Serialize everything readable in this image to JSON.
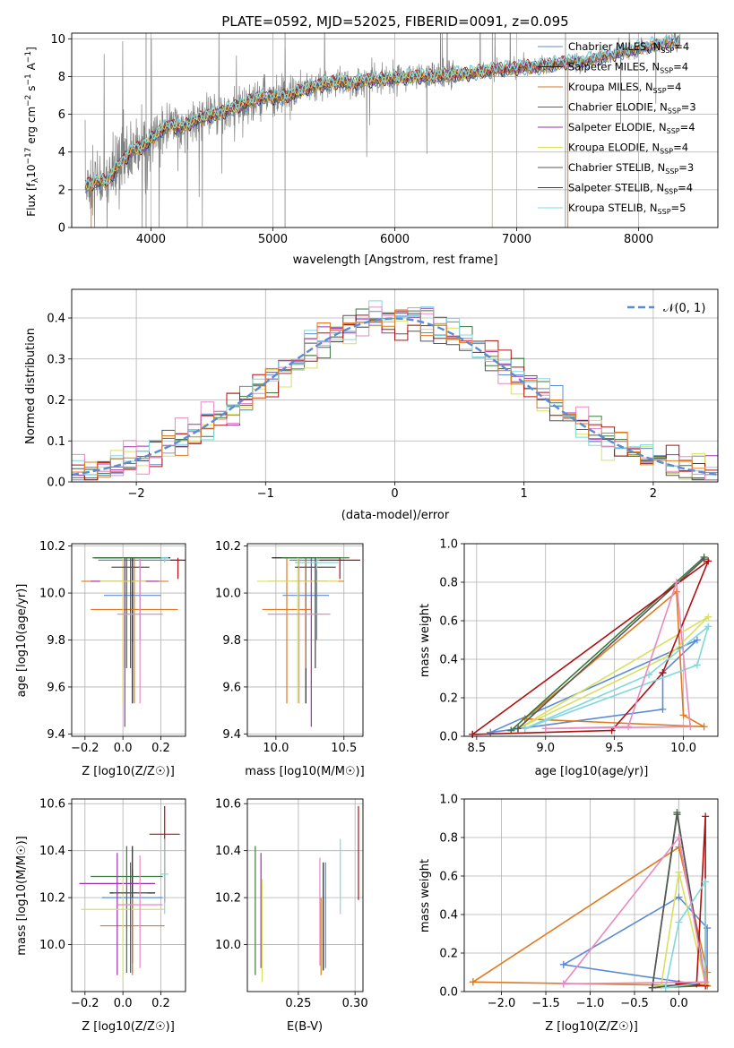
{
  "title": "PLATE=0592, MJD=52025, FIBERID=0091, z=0.095",
  "colors": {
    "chabrier_miles": "#5b8bd6",
    "salpeter_miles": "#222222",
    "kroupa_miles": "#e07a1f",
    "chabrier_elodie": "#3a7a3a",
    "salpeter_elodie": "#9b30b0",
    "kroupa_elodie": "#d8e060",
    "chabrier_stelib": "#555555",
    "salpeter_stelib": "#b01010",
    "kroupa_stelib": "#7fd8dc",
    "pink": "#e88abf",
    "gauss": "#5b8bd6",
    "grid": "#b0b0b0",
    "spectrum_gray": "#808080"
  },
  "legend_spectrum": [
    {
      "main": "Chabrier MILES, N",
      "sub": "SSP",
      "post": "=4",
      "color": "#5b8bd6"
    },
    {
      "main": "Salpeter MILES, N",
      "sub": "SSP",
      "post": "=4",
      "color": "#222222"
    },
    {
      "main": "Kroupa MILES, N",
      "sub": "SSP",
      "post": "=4",
      "color": "#e07a1f"
    },
    {
      "main": "Chabrier ELODIE, N",
      "sub": "SSP",
      "post": "=3",
      "color": "#3a7a3a"
    },
    {
      "main": "Salpeter ELODIE, N",
      "sub": "SSP",
      "post": "=4",
      "color": "#9b30b0"
    },
    {
      "main": "Kroupa ELODIE, N",
      "sub": "SSP",
      "post": "=4",
      "color": "#d8e060"
    },
    {
      "main": "Chabrier STELIB, N",
      "sub": "SSP",
      "post": "=3",
      "color": "#555555"
    },
    {
      "main": "Salpeter STELIB, N",
      "sub": "SSP",
      "post": "=4",
      "color": "#b01010"
    },
    {
      "main": "Kroupa STELIB, N",
      "sub": "SSP",
      "post": "=5",
      "color": "#7fd8dc"
    }
  ],
  "labels": {
    "spec_x": "wavelength [Angstrom, rest frame]",
    "spec_y_pre": "Flux [f",
    "spec_y_lambda": "λ",
    "spec_y_mid": "10",
    "spec_y_exp": "−17",
    "spec_y_post": " erg cm",
    "spec_y_exp2": "−2",
    "spec_y_s": " s",
    "spec_y_exp3": "−1",
    "spec_y_A": " A",
    "spec_y_exp4": "−1",
    "spec_y_end": "]",
    "hist_x": "(data-model)/error",
    "hist_y": "Normed distribution",
    "hist_legend": "𝒩(0, 1)",
    "age_y": "age  [log10(age/yr)]",
    "z_x": "Z [log10(Z/Z☉)]",
    "mass_x": "mass [log10(M/M☉)]",
    "mw_y": "mass weight",
    "age_x": "age  [log10(age/yr)]",
    "mass_y": "mass [log10(M/M☉)]",
    "ebv_x": "E(B-V)"
  },
  "chart_data": [
    {
      "type": "line",
      "title": "PLATE=0592, MJD=52025, FIBERID=0091, z=0.095",
      "xlabel": "wavelength [Angstrom, rest frame]",
      "ylabel": "Flux [fλ10^-17 erg cm^-2 s^-1 A^-1]",
      "xlim": [
        3350,
        8650
      ],
      "ylim": [
        0,
        10.3
      ],
      "x_ticks": [
        4000,
        5000,
        6000,
        7000,
        8000
      ],
      "y_ticks": [
        0,
        2,
        4,
        6,
        8,
        10
      ],
      "model_x": [
        3460,
        3550,
        3650,
        3750,
        3850,
        3950,
        4050,
        4150,
        4250,
        4350,
        4450,
        4550,
        4650,
        4750,
        4850,
        4950,
        5050,
        5150,
        5250,
        5350,
        5450,
        5550,
        5650,
        5750,
        5850,
        5950,
        6050,
        6150,
        6250,
        6350,
        6450,
        6550,
        6650,
        6750,
        6850,
        6950,
        7050,
        7150,
        7250,
        7350,
        7450,
        7550,
        7650,
        7750,
        7850,
        7950,
        8050,
        8150,
        8250,
        8350
      ],
      "model_y": [
        2.2,
        2.4,
        2.5,
        3.4,
        4.1,
        4.3,
        5.0,
        5.4,
        5.3,
        5.6,
        5.9,
        6.0,
        6.3,
        6.5,
        6.8,
        6.9,
        6.9,
        7.0,
        7.3,
        7.5,
        7.6,
        7.7,
        7.6,
        7.8,
        7.8,
        7.9,
        7.9,
        8.0,
        8.0,
        8.0,
        8.1,
        8.1,
        8.2,
        8.3,
        8.4,
        8.4,
        8.5,
        8.5,
        8.6,
        8.7,
        8.8,
        8.8,
        9.0,
        9.1,
        9.3,
        9.4,
        9.6,
        9.7,
        9.8,
        9.9
      ],
      "series": [
        {
          "name": "Chabrier MILES, N_SSP=4"
        },
        {
          "name": "Salpeter MILES, N_SSP=4"
        },
        {
          "name": "Kroupa MILES, N_SSP=4"
        },
        {
          "name": "Chabrier ELODIE, N_SSP=3"
        },
        {
          "name": "Salpeter ELODIE, N_SSP=4"
        },
        {
          "name": "Kroupa ELODIE, N_SSP=4"
        },
        {
          "name": "Chabrier STELIB, N_SSP=3"
        },
        {
          "name": "Salpeter STELIB, N_SSP=4"
        },
        {
          "name": "Kroupa STELIB, N_SSP=5"
        }
      ]
    },
    {
      "type": "bar",
      "xlabel": "(data-model)/error",
      "ylabel": "Normed distribution",
      "xlim": [
        -2.5,
        2.5
      ],
      "ylim": [
        0,
        0.47
      ],
      "x_ticks": [
        -2,
        -1,
        0,
        1,
        2
      ],
      "y_ticks": [
        0.0,
        0.1,
        0.2,
        0.3,
        0.4
      ],
      "bin_width": 0.1,
      "legend": "𝒩(0,1)"
    },
    {
      "type": "scatter",
      "name": "age vs Z",
      "xlim": [
        -0.27,
        0.33
      ],
      "ylim": [
        9.39,
        10.21
      ],
      "x_ticks": [
        -0.2,
        0.0,
        0.2
      ],
      "y_ticks": [
        9.4,
        9.6,
        9.8,
        10.0,
        10.2
      ],
      "points": [
        {
          "x": 0.05,
          "y": 9.99,
          "xerr": 0.15,
          "ylo": 9.79,
          "yhi": 10.15,
          "c": "chabrier_miles"
        },
        {
          "x": 0.09,
          "y": 10.14,
          "xerr": 0.22,
          "ylo": 9.8,
          "yhi": 10.15,
          "c": "chabrier_miles"
        },
        {
          "x": 0.05,
          "y": 10.15,
          "xerr": 0.2,
          "ylo": 9.53,
          "yhi": 10.15,
          "c": "salpeter_miles"
        },
        {
          "x": 0.06,
          "y": 9.93,
          "xerr": 0.23,
          "ylo": 9.53,
          "yhi": 10.15,
          "c": "kroupa_miles"
        },
        {
          "x": 0.01,
          "y": 10.05,
          "xerr": 0.23,
          "ylo": 9.68,
          "yhi": 10.15,
          "c": "kroupa_miles"
        },
        {
          "x": 0.02,
          "y": 10.15,
          "xerr": 0.18,
          "ylo": 9.68,
          "yhi": 10.15,
          "c": "chabrier_elodie"
        },
        {
          "x": 0.01,
          "y": 10.05,
          "xerr": 0.18,
          "ylo": 9.43,
          "yhi": 10.15,
          "c": "salpeter_elodie"
        },
        {
          "x": 0.0,
          "y": 10.05,
          "xerr": 0.12,
          "ylo": 9.53,
          "yhi": 10.15,
          "c": "kroupa_elodie"
        },
        {
          "x": 0.04,
          "y": 10.11,
          "xerr": 0.1,
          "ylo": 9.68,
          "yhi": 10.15,
          "c": "chabrier_stelib"
        },
        {
          "x": 0.29,
          "y": 10.14,
          "xerr": 0.04,
          "ylo": 10.06,
          "yhi": 10.15,
          "c": "salpeter_stelib"
        },
        {
          "x": 0.22,
          "y": 10.15,
          "xerr": 0.02,
          "ylo": 10.13,
          "yhi": 10.15,
          "c": "kroupa_stelib"
        },
        {
          "x": 0.09,
          "y": 9.91,
          "xerr": 0.12,
          "ylo": 9.53,
          "yhi": 10.15,
          "c": "pink"
        }
      ]
    },
    {
      "type": "scatter",
      "name": "age vs mass",
      "xlim": [
        9.79,
        10.64
      ],
      "ylim": [
        9.39,
        10.21
      ],
      "x_ticks": [
        10.0,
        10.5
      ],
      "y_ticks": [
        9.4,
        9.6,
        9.8,
        10.0,
        10.2
      ],
      "points": [
        {
          "x": 10.22,
          "y": 9.99,
          "xerr": 0.17,
          "ylo": 9.79,
          "yhi": 10.15,
          "c": "chabrier_miles"
        },
        {
          "x": 10.3,
          "y": 10.14,
          "xerr": 0.2,
          "ylo": 9.8,
          "yhi": 10.15,
          "c": "chabrier_miles"
        },
        {
          "x": 10.22,
          "y": 10.15,
          "xerr": 0.25,
          "ylo": 9.53,
          "yhi": 10.15,
          "c": "salpeter_miles"
        },
        {
          "x": 10.08,
          "y": 9.93,
          "xerr": 0.18,
          "ylo": 9.53,
          "yhi": 10.15,
          "c": "kroupa_miles"
        },
        {
          "x": 10.22,
          "y": 10.05,
          "xerr": 0.28,
          "ylo": 9.68,
          "yhi": 10.15,
          "c": "kroupa_miles"
        },
        {
          "x": 10.29,
          "y": 10.15,
          "xerr": 0.25,
          "ylo": 9.68,
          "yhi": 10.15,
          "c": "chabrier_elodie"
        },
        {
          "x": 10.26,
          "y": 10.05,
          "xerr": 0.12,
          "ylo": 9.43,
          "yhi": 10.15,
          "c": "salpeter_elodie"
        },
        {
          "x": 10.16,
          "y": 10.05,
          "xerr": 0.3,
          "ylo": 9.53,
          "yhi": 10.15,
          "c": "kroupa_elodie"
        },
        {
          "x": 10.29,
          "y": 10.11,
          "xerr": 0.15,
          "ylo": 9.68,
          "yhi": 10.15,
          "c": "chabrier_stelib"
        },
        {
          "x": 10.47,
          "y": 10.14,
          "xerr": 0.15,
          "ylo": 10.06,
          "yhi": 10.15,
          "c": "salpeter_stelib"
        },
        {
          "x": 10.3,
          "y": 10.13,
          "xerr": 0.16,
          "ylo": 10.1,
          "yhi": 10.15,
          "c": "kroupa_stelib"
        },
        {
          "x": 10.17,
          "y": 9.91,
          "xerr": 0.23,
          "ylo": 9.53,
          "yhi": 10.15,
          "c": "pink"
        }
      ]
    },
    {
      "type": "line",
      "name": "mass weight vs age",
      "xlim": [
        8.41,
        10.25
      ],
      "ylim": [
        0,
        1.0
      ],
      "x_ticks": [
        8.5,
        9.0,
        9.5,
        10.0
      ],
      "y_ticks": [
        0.0,
        0.2,
        0.4,
        0.6,
        0.8,
        1.0
      ],
      "series": [
        {
          "c": "chabrier_miles",
          "x": [
            8.6,
            9.85,
            9.85,
            10.1,
            8.6
          ],
          "y": [
            0.02,
            0.14,
            0.33,
            0.5,
            0.02
          ]
        },
        {
          "c": "kroupa_miles",
          "x": [
            8.85,
            9.95,
            10.0,
            10.15,
            8.85
          ],
          "y": [
            0.09,
            0.75,
            0.11,
            0.05,
            0.09
          ]
        },
        {
          "c": "chabrier_elodie",
          "x": [
            8.75,
            10.15,
            8.75
          ],
          "y": [
            0.03,
            0.93,
            0.03
          ]
        },
        {
          "c": "kroupa_elodie",
          "x": [
            8.8,
            10.18,
            9.9,
            8.8
          ],
          "y": [
            0.04,
            0.62,
            0.42,
            0.04
          ]
        },
        {
          "c": "chabrier_stelib",
          "x": [
            8.8,
            10.15,
            8.8
          ],
          "y": [
            0.04,
            0.92,
            0.04
          ]
        },
        {
          "c": "salpeter_stelib",
          "x": [
            8.47,
            9.48,
            9.85,
            10.18,
            8.47
          ],
          "y": [
            0.01,
            0.03,
            0.33,
            0.91,
            0.01
          ]
        },
        {
          "c": "kroupa_stelib",
          "x": [
            8.85,
            10.1,
            10.18,
            9.75,
            8.85
          ],
          "y": [
            0.04,
            0.37,
            0.57,
            0.32,
            0.04
          ]
        },
        {
          "c": "pink",
          "x": [
            9.0,
            9.6,
            9.95,
            10.05,
            9.0
          ],
          "y": [
            0.04,
            0.05,
            0.8,
            0.05,
            0.04
          ]
        }
      ]
    },
    {
      "type": "scatter",
      "name": "mass vs Z",
      "xlim": [
        -0.27,
        0.33
      ],
      "ylim": [
        9.8,
        10.62
      ],
      "x_ticks": [
        -0.2,
        0.0,
        0.2
      ],
      "y_ticks": [
        10.0,
        10.2,
        10.4,
        10.6
      ],
      "points": [
        {
          "x": 0.05,
          "y": 10.2,
          "xerr": 0.16,
          "ylo": 9.88,
          "yhi": 10.32,
          "c": "chabrier_miles"
        },
        {
          "x": 0.05,
          "y": 10.22,
          "xerr": 0.12,
          "ylo": 9.92,
          "yhi": 10.42,
          "c": "salpeter_miles"
        },
        {
          "x": 0.05,
          "y": 10.08,
          "xerr": 0.17,
          "ylo": 9.87,
          "yhi": 10.2,
          "c": "kroupa_miles"
        },
        {
          "x": 0.02,
          "y": 10.29,
          "xerr": 0.19,
          "ylo": 9.88,
          "yhi": 10.42,
          "c": "chabrier_elodie"
        },
        {
          "x": -0.03,
          "y": 10.26,
          "xerr": 0.2,
          "ylo": 9.87,
          "yhi": 10.39,
          "c": "salpeter_elodie"
        },
        {
          "x": 0.0,
          "y": 10.15,
          "xerr": 0.22,
          "ylo": 9.85,
          "yhi": 10.28,
          "c": "kroupa_elodie"
        },
        {
          "x": 0.04,
          "y": 10.22,
          "xerr": 0.09,
          "ylo": 9.88,
          "yhi": 10.35,
          "c": "chabrier_stelib"
        },
        {
          "x": 0.22,
          "y": 10.47,
          "xerr": 0.08,
          "ylo": 10.18,
          "yhi": 10.59,
          "c": "salpeter_stelib"
        },
        {
          "x": 0.22,
          "y": 10.3,
          "xerr": 0.02,
          "ylo": 10.13,
          "yhi": 10.45,
          "c": "kroupa_stelib"
        },
        {
          "x": 0.09,
          "y": 10.17,
          "xerr": 0.12,
          "ylo": 9.9,
          "yhi": 10.38,
          "c": "pink"
        }
      ]
    },
    {
      "type": "scatter",
      "name": "mass vs E(B-V)",
      "xlim": [
        0.205,
        0.307
      ],
      "ylim": [
        9.8,
        10.62
      ],
      "x_ticks": [
        0.25,
        0.3
      ],
      "y_ticks": [
        10.0,
        10.2,
        10.4,
        10.6
      ],
      "points": [
        {
          "x": 0.274,
          "ylo": 9.9,
          "yhi": 10.35,
          "c": "chabrier_miles"
        },
        {
          "x": 0.272,
          "ylo": 9.89,
          "yhi": 10.35,
          "c": "salpeter_miles"
        },
        {
          "x": 0.27,
          "ylo": 9.87,
          "yhi": 10.2,
          "c": "kroupa_miles"
        },
        {
          "x": 0.212,
          "ylo": 9.87,
          "yhi": 10.42,
          "c": "chabrier_elodie"
        },
        {
          "x": 0.217,
          "ylo": 9.9,
          "yhi": 10.39,
          "c": "salpeter_elodie"
        },
        {
          "x": 0.218,
          "ylo": 9.84,
          "yhi": 10.28,
          "c": "kroupa_elodie"
        },
        {
          "x": 0.269,
          "ylo": 9.91,
          "yhi": 10.37,
          "c": "pink"
        },
        {
          "x": 0.287,
          "ylo": 10.13,
          "yhi": 10.45,
          "c": "kroupa_stelib"
        },
        {
          "x": 0.303,
          "ylo": 10.19,
          "yhi": 10.59,
          "c": "salpeter_stelib"
        }
      ]
    },
    {
      "type": "line",
      "name": "mass weight vs Z",
      "xlim": [
        -2.42,
        0.44
      ],
      "ylim": [
        0,
        1.0
      ],
      "x_ticks": [
        -2.0,
        -1.5,
        -1.0,
        -0.5,
        0.0
      ],
      "y_ticks": [
        0.0,
        0.2,
        0.4,
        0.6,
        0.8,
        1.0
      ],
      "series": [
        {
          "c": "chabrier_miles",
          "x": [
            -1.3,
            0.0,
            0.32,
            0.32,
            -1.3
          ],
          "y": [
            0.14,
            0.49,
            0.33,
            0.03,
            0.14
          ]
        },
        {
          "c": "kroupa_miles",
          "x": [
            -2.32,
            0.0,
            0.32,
            0.32,
            -2.32
          ],
          "y": [
            0.05,
            0.75,
            0.1,
            0.03,
            0.05
          ]
        },
        {
          "c": "chabrier_elodie",
          "x": [
            -0.3,
            -0.02,
            0.3,
            -0.3
          ],
          "y": [
            0.02,
            0.93,
            0.03,
            0.02
          ]
        },
        {
          "c": "kroupa_elodie",
          "x": [
            -0.2,
            0.0,
            0.3,
            -0.2
          ],
          "y": [
            0.03,
            0.62,
            0.04,
            0.03
          ]
        },
        {
          "c": "chabrier_stelib",
          "x": [
            -0.3,
            -0.02,
            0.3,
            -0.3
          ],
          "y": [
            0.02,
            0.92,
            0.05,
            0.02
          ]
        },
        {
          "c": "salpeter_stelib",
          "x": [
            0.0,
            0.2,
            0.3,
            0.3,
            0.0
          ],
          "y": [
            0.04,
            0.04,
            0.91,
            0.03,
            0.04
          ]
        },
        {
          "c": "kroupa_stelib",
          "x": [
            -0.15,
            0.0,
            0.3,
            0.3,
            -0.15
          ],
          "y": [
            0.02,
            0.36,
            0.57,
            0.05,
            0.02
          ]
        },
        {
          "c": "pink",
          "x": [
            -1.3,
            0.0,
            0.3,
            -1.3
          ],
          "y": [
            0.04,
            0.8,
            0.05,
            0.04
          ]
        }
      ]
    }
  ]
}
